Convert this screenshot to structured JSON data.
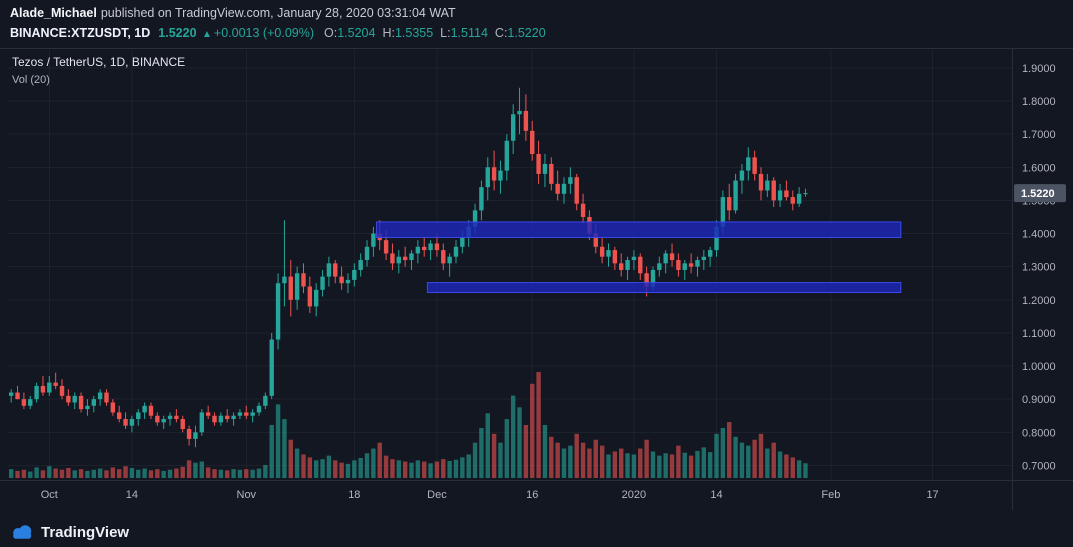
{
  "publisher": {
    "username": "Alade_Michael",
    "suffix": "published on TradingView.com, January 28, 2020 03:31:04 WAT"
  },
  "quote": {
    "symbol": "BINANCE:XTZUSDT, 1D",
    "last": "1.5220",
    "arrow": "▲",
    "change": "+0.0013 (+0.09%)",
    "ohlc": [
      {
        "label": "O:",
        "value": "1.5204"
      },
      {
        "label": "H:",
        "value": "1.5355"
      },
      {
        "label": "L:",
        "value": "1.5114"
      },
      {
        "label": "C:",
        "value": "1.5220"
      }
    ]
  },
  "legend": {
    "title": "Tezos / TetherUS, 1D, BINANCE",
    "indicator": "Vol (20)"
  },
  "footer": {
    "brand": "TradingView"
  },
  "chart_data": {
    "type": "candlestick",
    "title": "Tezos / TetherUS, 1D, BINANCE",
    "exchange": "BINANCE",
    "interval": "1D",
    "last_price": 1.522,
    "price_label": "1.5220",
    "colors": {
      "background": "#131722",
      "up": "#26a69a",
      "down": "#ef5350",
      "volume_up": "rgba(38,166,154,0.6)",
      "volume_down": "rgba(239,83,80,0.6)",
      "grid": "rgba(134,150,170,0.08)",
      "axis_text": "#b2b5be",
      "separator": "#2a2e39",
      "zone_fill": "#1e27b8",
      "zone_border": "#3a49e8",
      "badge_bg": "#4c5362",
      "badge_text": "#ffffff"
    },
    "y_axis": {
      "price_at_top": 1.954,
      "price_at_bottom": 0.656,
      "ticks": [
        1.9,
        1.8,
        1.7,
        1.6,
        1.5,
        1.4,
        1.3,
        1.2,
        1.1,
        1.0,
        0.9,
        0.8,
        0.7
      ]
    },
    "x_axis": {
      "total_slots": 158,
      "ticks": [
        {
          "label": "Oct",
          "slot": 6
        },
        {
          "label": "14",
          "slot": 19
        },
        {
          "label": "Nov",
          "slot": 37
        },
        {
          "label": "18",
          "slot": 54
        },
        {
          "label": "Dec",
          "slot": 67
        },
        {
          "label": "16",
          "slot": 82
        },
        {
          "label": "2020",
          "slot": 98
        },
        {
          "label": "14",
          "slot": 111
        },
        {
          "label": "Feb",
          "slot": 129
        },
        {
          "label": "17",
          "slot": 145
        }
      ]
    },
    "zones": [
      {
        "from_slot": 58,
        "to_slot": 140.5,
        "top": 1.435,
        "bottom": 1.388
      },
      {
        "from_slot": 66,
        "to_slot": 140.5,
        "top": 1.252,
        "bottom": 1.222
      }
    ],
    "candles": [
      [
        0.91,
        0.93,
        0.89,
        0.92,
        1.5
      ],
      [
        0.92,
        0.94,
        0.9,
        0.9,
        1.2
      ],
      [
        0.9,
        0.92,
        0.87,
        0.88,
        1.4
      ],
      [
        0.88,
        0.91,
        0.87,
        0.9,
        1.1
      ],
      [
        0.9,
        0.95,
        0.89,
        0.94,
        1.8
      ],
      [
        0.94,
        0.97,
        0.91,
        0.92,
        1.3
      ],
      [
        0.92,
        0.97,
        0.91,
        0.95,
        2.0
      ],
      [
        0.95,
        0.98,
        0.93,
        0.94,
        1.6
      ],
      [
        0.94,
        0.96,
        0.9,
        0.91,
        1.4
      ],
      [
        0.91,
        0.93,
        0.88,
        0.89,
        1.7
      ],
      [
        0.89,
        0.92,
        0.87,
        0.91,
        1.3
      ],
      [
        0.91,
        0.92,
        0.86,
        0.87,
        1.5
      ],
      [
        0.87,
        0.9,
        0.85,
        0.88,
        1.2
      ],
      [
        0.88,
        0.91,
        0.86,
        0.9,
        1.4
      ],
      [
        0.9,
        0.93,
        0.88,
        0.92,
        1.6
      ],
      [
        0.92,
        0.93,
        0.88,
        0.89,
        1.3
      ],
      [
        0.89,
        0.9,
        0.85,
        0.86,
        1.8
      ],
      [
        0.86,
        0.88,
        0.83,
        0.84,
        1.5
      ],
      [
        0.84,
        0.86,
        0.81,
        0.82,
        2.0
      ],
      [
        0.82,
        0.85,
        0.8,
        0.84,
        1.7
      ],
      [
        0.84,
        0.87,
        0.82,
        0.86,
        1.4
      ],
      [
        0.86,
        0.89,
        0.84,
        0.88,
        1.6
      ],
      [
        0.88,
        0.89,
        0.84,
        0.85,
        1.3
      ],
      [
        0.85,
        0.86,
        0.82,
        0.83,
        1.5
      ],
      [
        0.83,
        0.85,
        0.81,
        0.84,
        1.2
      ],
      [
        0.84,
        0.86,
        0.82,
        0.85,
        1.4
      ],
      [
        0.85,
        0.87,
        0.83,
        0.84,
        1.6
      ],
      [
        0.84,
        0.85,
        0.8,
        0.81,
        1.9
      ],
      [
        0.81,
        0.82,
        0.76,
        0.78,
        3.0
      ],
      [
        0.78,
        0.82,
        0.755,
        0.8,
        2.6
      ],
      [
        0.8,
        0.87,
        0.79,
        0.86,
        2.8
      ],
      [
        0.86,
        0.88,
        0.84,
        0.85,
        1.8
      ],
      [
        0.85,
        0.86,
        0.82,
        0.83,
        1.5
      ],
      [
        0.83,
        0.86,
        0.82,
        0.85,
        1.4
      ],
      [
        0.85,
        0.87,
        0.83,
        0.84,
        1.3
      ],
      [
        0.84,
        0.86,
        0.82,
        0.85,
        1.5
      ],
      [
        0.85,
        0.87,
        0.84,
        0.86,
        1.4
      ],
      [
        0.86,
        0.88,
        0.84,
        0.85,
        1.5
      ],
      [
        0.85,
        0.87,
        0.83,
        0.86,
        1.4
      ],
      [
        0.86,
        0.89,
        0.85,
        0.88,
        1.6
      ],
      [
        0.88,
        0.92,
        0.87,
        0.91,
        2.2
      ],
      [
        0.91,
        1.1,
        0.9,
        1.08,
        9.0
      ],
      [
        1.08,
        1.28,
        1.05,
        1.25,
        12.5
      ],
      [
        1.25,
        1.44,
        1.18,
        1.27,
        10.0
      ],
      [
        1.27,
        1.32,
        1.15,
        1.2,
        6.5
      ],
      [
        1.2,
        1.3,
        1.17,
        1.28,
        5.0
      ],
      [
        1.28,
        1.31,
        1.22,
        1.24,
        4.0
      ],
      [
        1.24,
        1.27,
        1.16,
        1.18,
        3.5
      ],
      [
        1.18,
        1.25,
        1.15,
        1.23,
        3.0
      ],
      [
        1.23,
        1.29,
        1.21,
        1.27,
        3.2
      ],
      [
        1.27,
        1.33,
        1.24,
        1.31,
        3.8
      ],
      [
        1.31,
        1.32,
        1.25,
        1.27,
        3.0
      ],
      [
        1.27,
        1.3,
        1.23,
        1.25,
        2.6
      ],
      [
        1.25,
        1.28,
        1.22,
        1.26,
        2.4
      ],
      [
        1.26,
        1.31,
        1.24,
        1.29,
        3.0
      ],
      [
        1.29,
        1.34,
        1.27,
        1.32,
        3.4
      ],
      [
        1.32,
        1.38,
        1.3,
        1.36,
        4.2
      ],
      [
        1.36,
        1.42,
        1.33,
        1.4,
        5.0
      ],
      [
        1.4,
        1.44,
        1.35,
        1.38,
        6.0
      ],
      [
        1.38,
        1.41,
        1.32,
        1.34,
        3.8
      ],
      [
        1.34,
        1.37,
        1.29,
        1.31,
        3.2
      ],
      [
        1.31,
        1.35,
        1.28,
        1.33,
        3.0
      ],
      [
        1.33,
        1.36,
        1.3,
        1.32,
        2.8
      ],
      [
        1.32,
        1.35,
        1.29,
        1.34,
        2.6
      ],
      [
        1.34,
        1.38,
        1.31,
        1.36,
        3.0
      ],
      [
        1.36,
        1.39,
        1.33,
        1.35,
        2.8
      ],
      [
        1.35,
        1.38,
        1.32,
        1.37,
        2.5
      ],
      [
        1.37,
        1.4,
        1.33,
        1.35,
        2.8
      ],
      [
        1.35,
        1.37,
        1.29,
        1.31,
        3.2
      ],
      [
        1.31,
        1.34,
        1.27,
        1.33,
        2.9
      ],
      [
        1.33,
        1.38,
        1.31,
        1.36,
        3.1
      ],
      [
        1.36,
        1.41,
        1.34,
        1.39,
        3.5
      ],
      [
        1.39,
        1.44,
        1.36,
        1.42,
        4.0
      ],
      [
        1.42,
        1.49,
        1.4,
        1.47,
        6.0
      ],
      [
        1.47,
        1.56,
        1.44,
        1.54,
        8.5
      ],
      [
        1.54,
        1.63,
        1.5,
        1.6,
        11.0
      ],
      [
        1.6,
        1.65,
        1.53,
        1.56,
        7.5
      ],
      [
        1.56,
        1.62,
        1.52,
        1.59,
        6.0
      ],
      [
        1.59,
        1.7,
        1.56,
        1.68,
        10.0
      ],
      [
        1.68,
        1.79,
        1.64,
        1.76,
        14.0
      ],
      [
        1.76,
        1.84,
        1.7,
        1.77,
        12.0
      ],
      [
        1.77,
        1.82,
        1.68,
        1.71,
        9.0
      ],
      [
        1.71,
        1.74,
        1.62,
        1.64,
        16.0
      ],
      [
        1.64,
        1.68,
        1.55,
        1.58,
        18.0
      ],
      [
        1.58,
        1.64,
        1.54,
        1.61,
        9.0
      ],
      [
        1.61,
        1.63,
        1.53,
        1.55,
        7.0
      ],
      [
        1.55,
        1.59,
        1.5,
        1.52,
        6.0
      ],
      [
        1.52,
        1.57,
        1.49,
        1.55,
        5.0
      ],
      [
        1.55,
        1.6,
        1.52,
        1.57,
        5.5
      ],
      [
        1.57,
        1.58,
        1.47,
        1.49,
        7.5
      ],
      [
        1.49,
        1.52,
        1.43,
        1.45,
        6.0
      ],
      [
        1.45,
        1.47,
        1.38,
        1.4,
        5.0
      ],
      [
        1.4,
        1.43,
        1.34,
        1.36,
        6.5
      ],
      [
        1.36,
        1.39,
        1.31,
        1.33,
        5.5
      ],
      [
        1.33,
        1.37,
        1.3,
        1.35,
        4.0
      ],
      [
        1.35,
        1.36,
        1.29,
        1.31,
        4.5
      ],
      [
        1.31,
        1.34,
        1.27,
        1.29,
        5.0
      ],
      [
        1.29,
        1.33,
        1.26,
        1.32,
        4.2
      ],
      [
        1.32,
        1.35,
        1.29,
        1.33,
        4.0
      ],
      [
        1.33,
        1.34,
        1.26,
        1.28,
        5.0
      ],
      [
        1.28,
        1.3,
        1.21,
        1.24,
        6.5
      ],
      [
        1.24,
        1.3,
        1.23,
        1.29,
        4.5
      ],
      [
        1.29,
        1.33,
        1.27,
        1.31,
        3.8
      ],
      [
        1.31,
        1.35,
        1.28,
        1.34,
        4.2
      ],
      [
        1.34,
        1.37,
        1.3,
        1.32,
        4.0
      ],
      [
        1.32,
        1.34,
        1.27,
        1.29,
        5.5
      ],
      [
        1.29,
        1.32,
        1.26,
        1.31,
        4.3
      ],
      [
        1.31,
        1.34,
        1.28,
        1.3,
        3.8
      ],
      [
        1.3,
        1.33,
        1.27,
        1.32,
        4.6
      ],
      [
        1.32,
        1.35,
        1.29,
        1.33,
        5.2
      ],
      [
        1.33,
        1.36,
        1.3,
        1.35,
        4.4
      ],
      [
        1.35,
        1.44,
        1.33,
        1.42,
        7.5
      ],
      [
        1.42,
        1.53,
        1.4,
        1.51,
        8.5
      ],
      [
        1.51,
        1.55,
        1.44,
        1.47,
        9.5
      ],
      [
        1.47,
        1.58,
        1.46,
        1.56,
        7.0
      ],
      [
        1.56,
        1.61,
        1.52,
        1.59,
        6.0
      ],
      [
        1.59,
        1.66,
        1.56,
        1.63,
        5.5
      ],
      [
        1.63,
        1.65,
        1.56,
        1.58,
        6.5
      ],
      [
        1.58,
        1.6,
        1.5,
        1.53,
        7.5
      ],
      [
        1.53,
        1.58,
        1.51,
        1.56,
        5.0
      ],
      [
        1.56,
        1.57,
        1.48,
        1.5,
        6.0
      ],
      [
        1.5,
        1.55,
        1.48,
        1.53,
        4.5
      ],
      [
        1.53,
        1.56,
        1.5,
        1.51,
        4.0
      ],
      [
        1.51,
        1.53,
        1.47,
        1.49,
        3.5
      ],
      [
        1.49,
        1.54,
        1.48,
        1.52,
        3.0
      ],
      [
        1.5204,
        1.5355,
        1.5114,
        1.522,
        2.5
      ]
    ]
  }
}
